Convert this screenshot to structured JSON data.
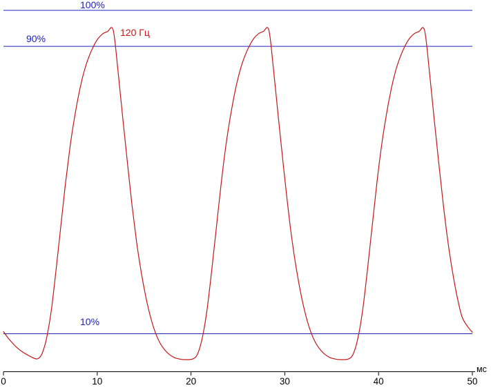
{
  "chart_data": {
    "type": "line",
    "title": "",
    "xlabel": "мс",
    "x_range": [
      0,
      50
    ],
    "x_ticks": [
      0,
      10,
      20,
      30,
      40,
      50
    ],
    "y_unit": "%",
    "grid": false,
    "reference_levels": [
      {
        "label": "100%",
        "percent": 100
      },
      {
        "label": "90%",
        "percent": 90
      },
      {
        "label": "10%",
        "percent": 10
      }
    ],
    "colors": {
      "reference": "#2020c0",
      "axis": "#000000",
      "background": "#ffffff"
    },
    "series": [
      {
        "name": "120 Гц",
        "color": "#c41616",
        "points_ms_percent": [
          [
            0,
            10.6
          ],
          [
            0.5,
            8.8
          ],
          [
            1,
            7.3
          ],
          [
            1.5,
            6.0
          ],
          [
            2,
            5.0
          ],
          [
            2.5,
            4.2
          ],
          [
            3,
            3.5
          ],
          [
            3.6,
            3.0
          ],
          [
            4.1,
            4.4
          ],
          [
            4.6,
            8.8
          ],
          [
            5.1,
            16.5
          ],
          [
            5.6,
            27.5
          ],
          [
            6.1,
            39.5
          ],
          [
            6.6,
            51.5
          ],
          [
            7.1,
            62
          ],
          [
            7.6,
            70.5
          ],
          [
            8.1,
            77.5
          ],
          [
            8.6,
            83
          ],
          [
            9.1,
            87
          ],
          [
            9.6,
            90
          ],
          [
            10.1,
            92.2
          ],
          [
            10.6,
            93.5
          ],
          [
            11.1,
            94.1
          ],
          [
            11.7,
            94.5
          ],
          [
            12.2,
            83.5
          ],
          [
            12.7,
            70.5
          ],
          [
            13.2,
            58
          ],
          [
            13.7,
            46
          ],
          [
            14.2,
            35.5
          ],
          [
            14.7,
            27
          ],
          [
            15.2,
            20
          ],
          [
            15.7,
            14.5
          ],
          [
            16.2,
            10.3
          ],
          [
            16.7,
            7.4
          ],
          [
            17.2,
            5.5
          ],
          [
            17.7,
            4.2
          ],
          [
            18.2,
            3.4
          ],
          [
            18.7,
            3.0
          ],
          [
            19.4,
            2.8
          ],
          [
            20.2,
            3.0
          ],
          [
            20.7,
            4.4
          ],
          [
            21.2,
            8.8
          ],
          [
            21.7,
            16.5
          ],
          [
            22.2,
            27.5
          ],
          [
            22.7,
            39.5
          ],
          [
            23.2,
            51.5
          ],
          [
            23.7,
            62
          ],
          [
            24.2,
            70.5
          ],
          [
            24.7,
            77.5
          ],
          [
            25.2,
            83
          ],
          [
            25.7,
            87
          ],
          [
            26.2,
            90
          ],
          [
            26.7,
            92.2
          ],
          [
            27.2,
            93.5
          ],
          [
            27.7,
            94.1
          ],
          [
            28.3,
            94.5
          ],
          [
            28.8,
            83.5
          ],
          [
            29.3,
            70.5
          ],
          [
            29.8,
            58
          ],
          [
            30.3,
            46
          ],
          [
            30.8,
            35.5
          ],
          [
            31.3,
            27
          ],
          [
            31.8,
            20
          ],
          [
            32.3,
            14.5
          ],
          [
            32.8,
            10.3
          ],
          [
            33.3,
            7.4
          ],
          [
            33.8,
            5.5
          ],
          [
            34.3,
            4.2
          ],
          [
            34.8,
            3.4
          ],
          [
            35.3,
            3.0
          ],
          [
            36.0,
            2.8
          ],
          [
            36.8,
            3.0
          ],
          [
            37.3,
            4.4
          ],
          [
            37.8,
            8.8
          ],
          [
            38.3,
            16.5
          ],
          [
            38.8,
            27.5
          ],
          [
            39.3,
            39.5
          ],
          [
            39.8,
            51.5
          ],
          [
            40.3,
            62
          ],
          [
            40.8,
            70.5
          ],
          [
            41.3,
            77.5
          ],
          [
            41.8,
            83
          ],
          [
            42.3,
            87
          ],
          [
            42.8,
            90
          ],
          [
            43.3,
            92.2
          ],
          [
            43.8,
            93.5
          ],
          [
            44.3,
            94.1
          ],
          [
            44.9,
            94.5
          ],
          [
            45.4,
            83.5
          ],
          [
            45.9,
            70.5
          ],
          [
            46.4,
            58
          ],
          [
            46.9,
            46
          ],
          [
            47.4,
            35.5
          ],
          [
            47.9,
            27
          ],
          [
            48.4,
            20
          ],
          [
            48.9,
            14.7
          ],
          [
            49.5,
            12.0
          ],
          [
            50,
            10.4
          ]
        ]
      }
    ]
  }
}
